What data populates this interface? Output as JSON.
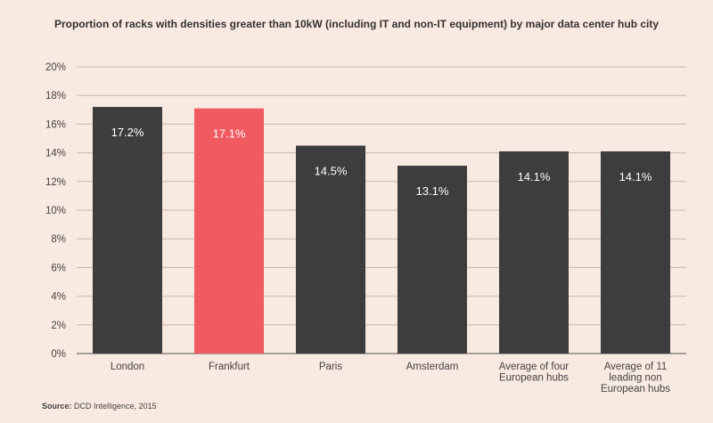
{
  "chart_data": {
    "type": "bar",
    "title": "Proportion of racks with densities greater than 10kW (including IT and non-IT equipment) by major data center hub city",
    "categories": [
      [
        "London"
      ],
      [
        "Frankfurt"
      ],
      [
        "Paris"
      ],
      [
        "Amsterdam"
      ],
      [
        "Average of four",
        "European hubs"
      ],
      [
        "Average of 11",
        "leading non",
        "European hubs"
      ]
    ],
    "values": [
      17.2,
      17.1,
      14.5,
      13.1,
      14.1,
      14.1
    ],
    "data_labels": [
      "17.2%",
      "17.1%",
      "14.5%",
      "13.1%",
      "14.1%",
      "14.1%"
    ],
    "highlight_index": 1,
    "bar_colors": [
      "#3d3c3e",
      "#f05a61",
      "#3d3c3e",
      "#3d3c3e",
      "#3d3c3e",
      "#3d3c3e"
    ],
    "yticks": [
      "0%",
      "2%",
      "4%",
      "6%",
      "8%",
      "10%",
      "12%",
      "14%",
      "16%",
      "18%",
      "20%"
    ],
    "ylim": [
      0,
      20
    ],
    "xlabel": "",
    "ylabel": "",
    "grid": true
  },
  "source": {
    "label": "Source:",
    "text": "DCD Intelligence, 2015"
  }
}
